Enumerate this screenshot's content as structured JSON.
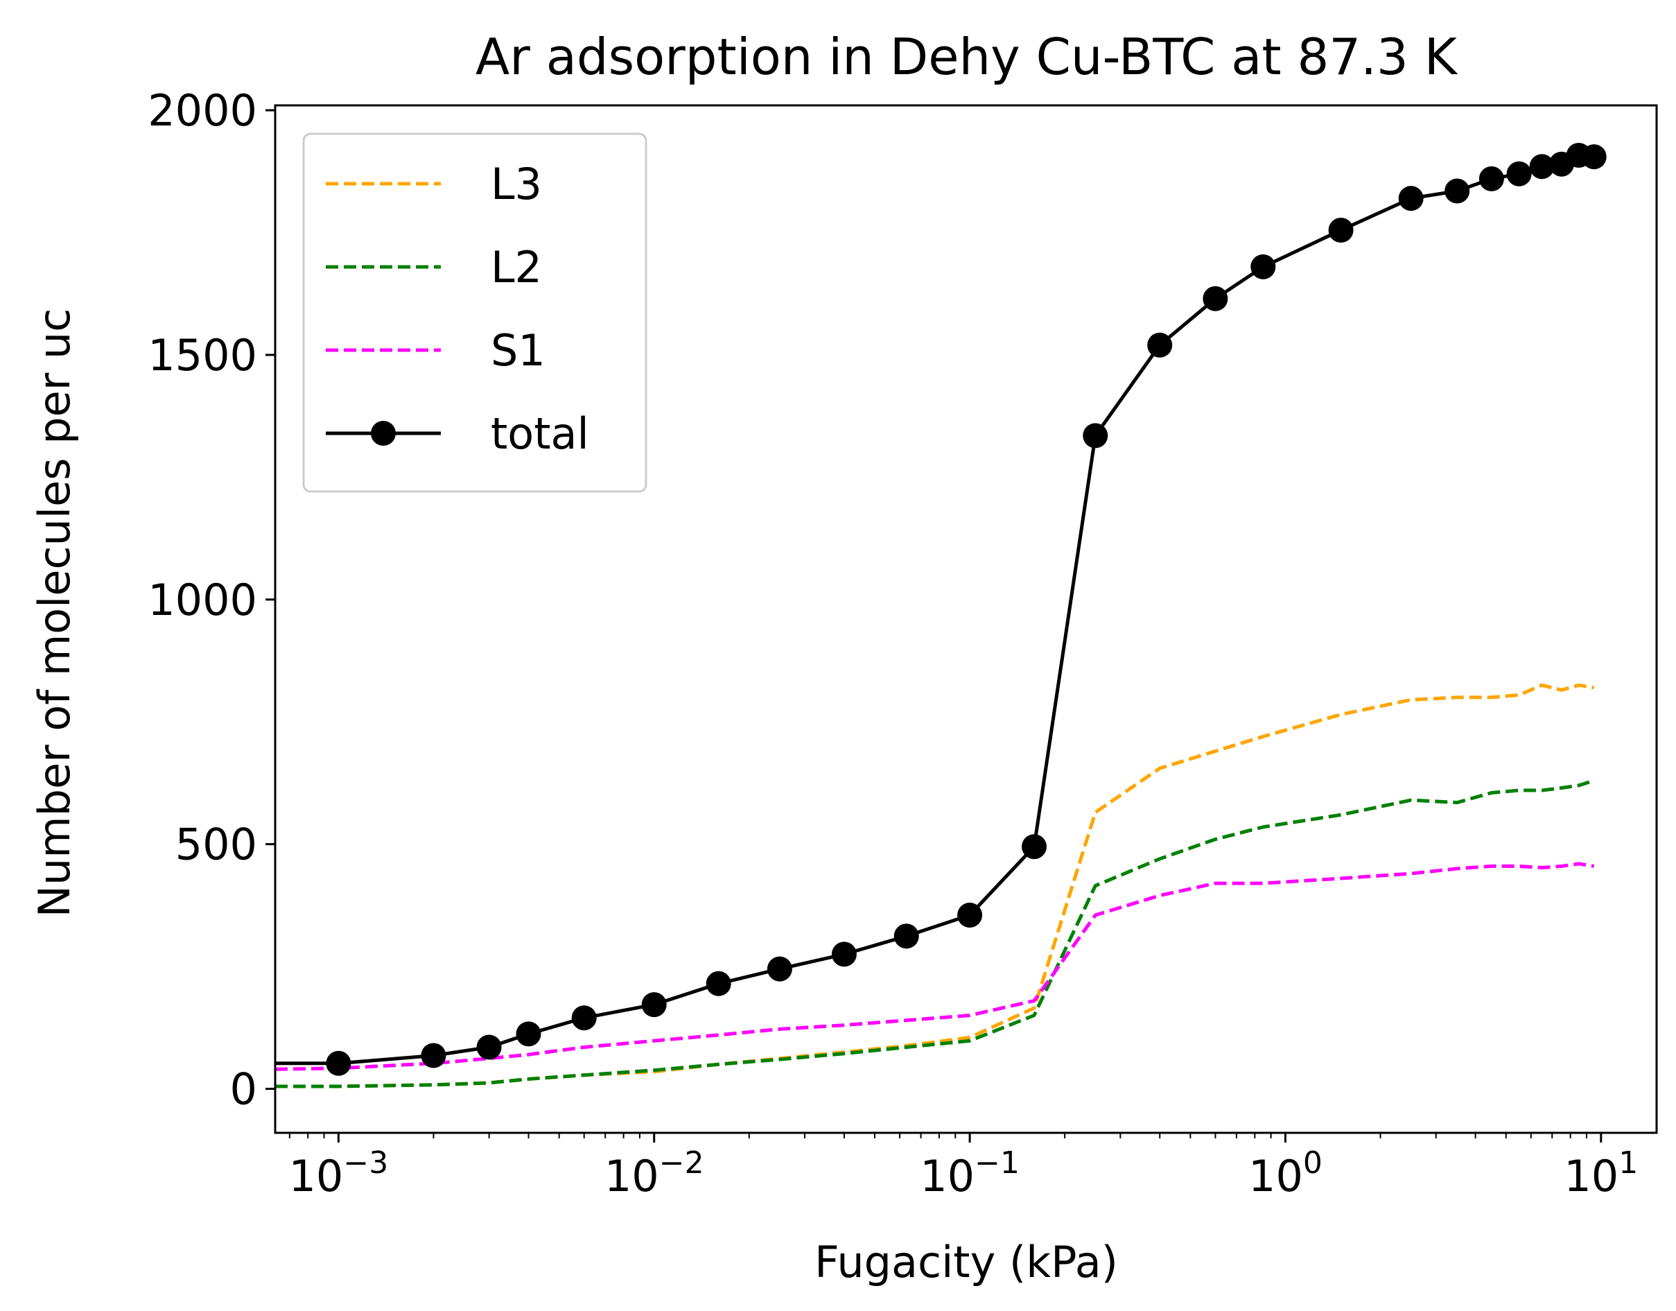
{
  "chart_data": {
    "type": "line",
    "title": "Ar adsorption in Dehy Cu-BTC at 87.3 K",
    "xlabel": "Fugacity (kPa)",
    "ylabel": "Number of molecules per uc",
    "xscale": "log",
    "xlim": [
      0.00063,
      15
    ],
    "ylim": [
      -90,
      2010
    ],
    "x_ticks": [
      {
        "value": 0.001,
        "base": "10",
        "exp": "−3"
      },
      {
        "value": 0.01,
        "base": "10",
        "exp": "−2"
      },
      {
        "value": 0.1,
        "base": "10",
        "exp": "−1"
      },
      {
        "value": 1,
        "base": "10",
        "exp": "0"
      },
      {
        "value": 10,
        "base": "10",
        "exp": "1"
      }
    ],
    "y_ticks": [
      {
        "value": 0,
        "label": "0"
      },
      {
        "value": 500,
        "label": "500"
      },
      {
        "value": 1000,
        "label": "1000"
      },
      {
        "value": 1500,
        "label": "1500"
      },
      {
        "value": 2000,
        "label": "2000"
      }
    ],
    "grid": false,
    "legend_position": "top-left",
    "series": [
      {
        "name": "L3",
        "color": "#FFA500",
        "style": "dashed",
        "x": [
          0.00063,
          0.001,
          0.002,
          0.003,
          0.004,
          0.006,
          0.01,
          0.016,
          0.025,
          0.04,
          0.063,
          0.1,
          0.16,
          0.25,
          0.4,
          0.6,
          0.85,
          1.5,
          2.5,
          3.5,
          4.5,
          5.5,
          6.5,
          7.5,
          8.5,
          9.5
        ],
        "y": [
          5,
          5,
          8,
          12,
          20,
          28,
          35,
          50,
          62,
          75,
          88,
          105,
          165,
          565,
          655,
          690,
          720,
          765,
          795,
          800,
          800,
          805,
          825,
          815,
          825,
          820
        ]
      },
      {
        "name": "L2",
        "color": "#008000",
        "style": "dashed",
        "x": [
          0.00063,
          0.001,
          0.002,
          0.003,
          0.004,
          0.006,
          0.01,
          0.016,
          0.025,
          0.04,
          0.063,
          0.1,
          0.16,
          0.25,
          0.4,
          0.6,
          0.85,
          1.5,
          2.5,
          3.5,
          4.5,
          5.5,
          6.5,
          7.5,
          8.5,
          9.5
        ],
        "y": [
          5,
          5,
          8,
          12,
          20,
          28,
          38,
          50,
          60,
          72,
          85,
          98,
          150,
          415,
          470,
          510,
          535,
          560,
          590,
          585,
          605,
          610,
          610,
          615,
          620,
          630
        ]
      },
      {
        "name": "S1",
        "color": "#FF00FF",
        "style": "dashed",
        "x": [
          0.00063,
          0.001,
          0.002,
          0.003,
          0.004,
          0.006,
          0.01,
          0.016,
          0.025,
          0.04,
          0.063,
          0.1,
          0.16,
          0.25,
          0.4,
          0.6,
          0.85,
          1.5,
          2.5,
          3.5,
          4.5,
          5.5,
          6.5,
          7.5,
          8.5,
          9.5
        ],
        "y": [
          40,
          42,
          52,
          62,
          70,
          85,
          98,
          110,
          122,
          130,
          140,
          150,
          180,
          355,
          395,
          420,
          420,
          430,
          440,
          450,
          455,
          455,
          452,
          455,
          460,
          455
        ]
      },
      {
        "name": "total",
        "color": "#000000",
        "style": "solid-markers",
        "x": [
          0.00063,
          0.001,
          0.002,
          0.003,
          0.004,
          0.006,
          0.01,
          0.016,
          0.025,
          0.04,
          0.063,
          0.1,
          0.16,
          0.25,
          0.4,
          0.6,
          0.85,
          1.5,
          2.5,
          3.5,
          4.5,
          5.5,
          6.5,
          7.5,
          8.5,
          9.5
        ],
        "y": [
          52,
          52,
          68,
          85,
          112,
          145,
          172,
          215,
          245,
          275,
          312,
          355,
          495,
          1335,
          1520,
          1615,
          1680,
          1755,
          1820,
          1835,
          1860,
          1870,
          1885,
          1890,
          1908,
          1905
        ],
        "markers": [
          false,
          true,
          true,
          true,
          true,
          true,
          true,
          true,
          true,
          true,
          true,
          true,
          true,
          true,
          true,
          true,
          true,
          true,
          true,
          true,
          true,
          true,
          true,
          true,
          true,
          true
        ]
      }
    ]
  }
}
